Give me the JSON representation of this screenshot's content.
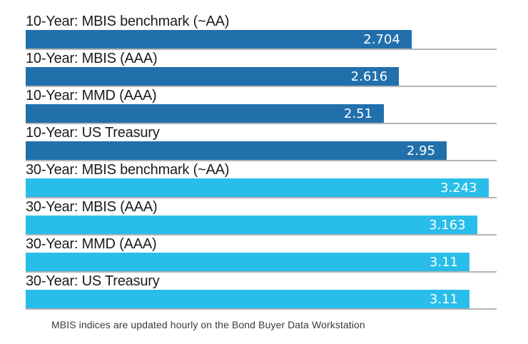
{
  "chart_data": {
    "type": "bar",
    "orientation": "horizontal",
    "title": "",
    "xlabel": "",
    "ylabel": "",
    "xlim": [
      0,
      3.3
    ],
    "grid": false,
    "legend": "none",
    "categories": [
      "10-Year: MBIS benchmark (~AA)",
      "10-Year: MBIS (AAA)",
      "10-Year: MMD (AAA)",
      "10-Year: US Treasury",
      "30-Year: MBIS benchmark (~AA)",
      "30-Year: MBIS (AAA)",
      "30-Year: MMD (AAA)",
      "30-Year: US Treasury"
    ],
    "values": [
      2.704,
      2.616,
      2.51,
      2.95,
      3.243,
      3.163,
      3.11,
      3.11
    ],
    "value_labels": [
      "2.704",
      "2.616",
      "2.51",
      "2.95",
      "3.243",
      "3.163",
      "3.11",
      "3.11"
    ],
    "groups": [
      "ten_year",
      "ten_year",
      "ten_year",
      "ten_year",
      "thirty_year",
      "thirty_year",
      "thirty_year",
      "thirty_year"
    ],
    "colors": {
      "ten_year": "#2170AC",
      "thirty_year": "#29BDE9",
      "baseline": "#b3b3b3",
      "value_text": "#ffffff",
      "label_text": "#1c1c1c"
    },
    "footnote": "MBIS indices are updated hourly on the Bond Buyer Data Workstation"
  }
}
